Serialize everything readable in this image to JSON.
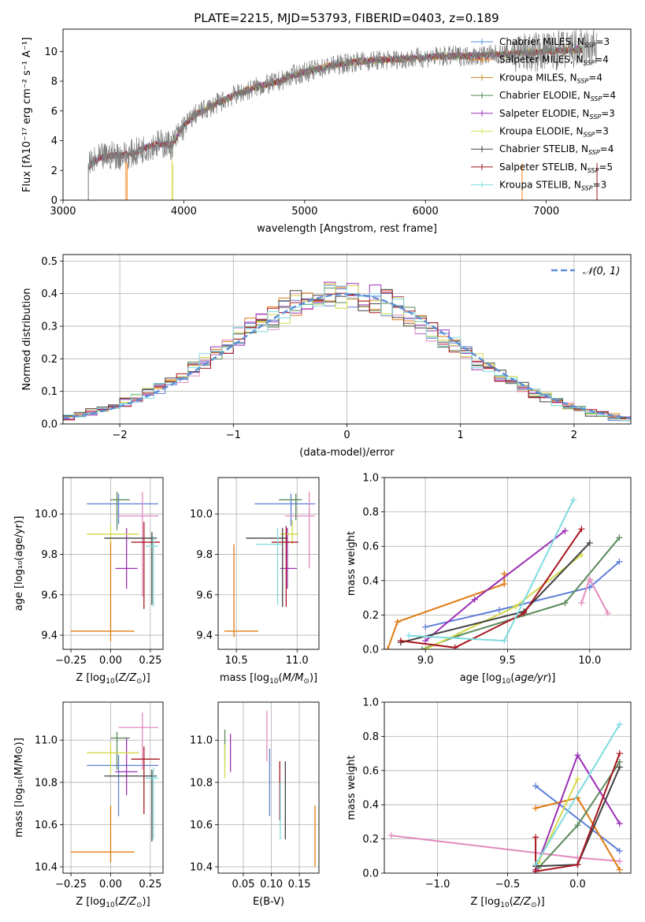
{
  "figure_title": "PLATE=2215, MJD=53793, FIBERID=0403, z=0.189",
  "colors": {
    "series": [
      "#7f7f7f",
      "#ff7f0e",
      "#e07a10",
      "#2ca02c",
      "#5a8a5a",
      "#9b30b5",
      "#d4d94a",
      "#404040",
      "#a8161e",
      "#7fdbe0",
      "#e38ac0",
      "#5f7fd9"
    ]
  },
  "chart_data": [
    {
      "id": "spectrum",
      "type": "line",
      "title": "PLATE=2215, MJD=53793, FIBERID=0403, z=0.189",
      "xlabel": "wavelength [Angstrom, rest frame]",
      "ylabel": "Flux [f_λ 10^-17 erg cm^-2 s^-1 A^-1]",
      "xlim": [
        3000,
        7700
      ],
      "ylim": [
        0,
        11.5
      ],
      "xticks": [
        "3000",
        "4000",
        "5000",
        "6000",
        "7000"
      ],
      "yticks": [
        "0",
        "2",
        "4",
        "6",
        "8",
        "10"
      ],
      "data_envelope": {
        "x": [
          3200,
          3300,
          3400,
          3500,
          3600,
          3700,
          3800,
          3900,
          4000,
          4100,
          4200,
          4300,
          4400,
          4500,
          4600,
          4700,
          4800,
          4900,
          5000,
          5200,
          5400,
          5600,
          5800,
          6000,
          6200,
          6400,
          6600,
          6800,
          7000,
          7200,
          7400
        ],
        "y": [
          2.2,
          2.8,
          3.0,
          3.0,
          3.2,
          3.6,
          3.8,
          3.7,
          5.0,
          5.8,
          6.2,
          6.6,
          7.0,
          7.3,
          7.6,
          7.8,
          8.0,
          8.4,
          8.6,
          9.0,
          9.3,
          9.4,
          9.5,
          9.6,
          9.7,
          9.7,
          9.8,
          9.9,
          10.0,
          10.1,
          10.2
        ]
      },
      "legend_position": "upper right",
      "legend": [
        {
          "label": "Chabrier MILES, N",
          "sub": "SSP",
          "suffix": "=3",
          "color": "#4a90e2"
        },
        {
          "label": "Salpeter MILES, N",
          "sub": "SSP",
          "suffix": "=4",
          "color": "#ff7f0e"
        },
        {
          "label": "Kroupa MILES, N",
          "sub": "SSP",
          "suffix": "=4",
          "color": "#c7891a"
        },
        {
          "label": "Chabrier ELODIE, N",
          "sub": "SSP",
          "suffix": "=4",
          "color": "#4f8a4f"
        },
        {
          "label": "Salpeter ELODIE, N",
          "sub": "SSP",
          "suffix": "=3",
          "color": "#9b30b5"
        },
        {
          "label": "Kroupa ELODIE, N",
          "sub": "SSP",
          "suffix": "=3",
          "color": "#d4e05a"
        },
        {
          "label": "Chabrier STELIB, N",
          "sub": "SSP",
          "suffix": "=4",
          "color": "#404040"
        },
        {
          "label": "Salpeter STELIB, N",
          "sub": "SSP",
          "suffix": "=5",
          "color": "#a8161e"
        },
        {
          "label": "Kroupa STELIB, N",
          "sub": "SSP",
          "suffix": "=3",
          "color": "#7fdbe0"
        }
      ]
    },
    {
      "id": "residuals",
      "type": "histogram",
      "xlabel": "(data-model)/error",
      "ylabel": "Normed distribution",
      "xlim": [
        -2.5,
        2.5
      ],
      "ylim": [
        0,
        0.52
      ],
      "xticks": [
        "−2",
        "−1",
        "0",
        "1",
        "2"
      ],
      "yticks": [
        "0.0",
        "0.1",
        "0.2",
        "0.3",
        "0.4",
        "0.5"
      ],
      "reference_curve": "𝒩(0, 1)",
      "bin_width": 0.1
    },
    {
      "id": "age_vs_Z",
      "type": "scatter",
      "xlabel": "Z [log10(Z/Z⊙)]",
      "ylabel": "age [log10(age/yr)]",
      "xlim": [
        -0.3,
        0.33
      ],
      "ylim": [
        9.33,
        10.18
      ],
      "xticks": [
        "−0.25",
        "0.00",
        "0.25"
      ],
      "xtick_values": [
        -0.25,
        0,
        0.25
      ],
      "yticks": [
        "9.4",
        "9.6",
        "9.8",
        "10.0"
      ],
      "ytick_values": [
        9.4,
        9.6,
        9.8,
        10.0
      ],
      "points": [
        {
          "x": 0.0,
          "y": 9.42,
          "xerr": [
            0.25,
            0.15
          ],
          "yerr": [
            0.05,
            0.45
          ],
          "color": "#e07a10"
        },
        {
          "x": 0.05,
          "y": 10.05,
          "xerr": [
            0.2,
            0.25
          ],
          "yerr": [
            0.1,
            0.05
          ],
          "color": "#5f7fd9"
        },
        {
          "x": 0.2,
          "y": 9.99,
          "xerr": [
            0.15,
            0.1
          ],
          "yerr": [
            0.4,
            0.12
          ],
          "color": "#e38ac0"
        },
        {
          "x": 0.04,
          "y": 10.07,
          "xerr": [
            0.04,
            0.08
          ],
          "yerr": [
            0.15,
            0.04
          ],
          "color": "#5a8a5a"
        },
        {
          "x": 0.1,
          "y": 9.73,
          "xerr": [
            0.07,
            0.07
          ],
          "yerr": [
            0.1,
            0.2
          ],
          "color": "#9b30b5"
        },
        {
          "x": 0.0,
          "y": 9.9,
          "xerr": [
            0.15,
            0.18
          ],
          "yerr": [
            0.04,
            0.05
          ],
          "color": "#d4d94a"
        },
        {
          "x": 0.26,
          "y": 9.88,
          "xerr": [
            0.3,
            0.03
          ],
          "yerr": [
            0.33,
            0.03
          ],
          "color": "#404040"
        },
        {
          "x": 0.21,
          "y": 9.86,
          "xerr": [
            0.08,
            0.1
          ],
          "yerr": [
            0.33,
            0.1
          ],
          "color": "#a8161e"
        },
        {
          "x": 0.27,
          "y": 9.84,
          "xerr": [
            0.05,
            0.03
          ],
          "yerr": [
            0.3,
            0.05
          ],
          "color": "#7fdbe0"
        }
      ]
    },
    {
      "id": "age_vs_mass",
      "type": "scatter",
      "xlabel": "mass [log10(M/M⊙)]",
      "ylabel": "",
      "xlim": [
        10.35,
        11.18
      ],
      "ylim": [
        9.33,
        10.18
      ],
      "xticks": [
        "10.5",
        "11.0"
      ],
      "xtick_values": [
        10.5,
        11.0
      ],
      "yticks": [
        "9.4",
        "9.6",
        "9.8",
        "10.0"
      ],
      "ytick_values": [
        9.4,
        9.6,
        9.8,
        10.0
      ],
      "points": [
        {
          "x": 10.48,
          "y": 9.42,
          "xerr": [
            0.08,
            0.2
          ],
          "yerr": [
            0.03,
            0.43
          ],
          "color": "#e07a10"
        },
        {
          "x": 10.95,
          "y": 10.05,
          "xerr": [
            0.3,
            0.2
          ],
          "yerr": [
            0.11,
            0.05
          ],
          "color": "#5f7fd9"
        },
        {
          "x": 11.1,
          "y": 9.99,
          "xerr": [
            0.2,
            0.05
          ],
          "yerr": [
            0.26,
            0.12
          ],
          "color": "#e38ac0"
        },
        {
          "x": 10.99,
          "y": 10.07,
          "xerr": [
            0.14,
            0.05
          ],
          "yerr": [
            0.1,
            0.03
          ],
          "color": "#5a8a5a"
        },
        {
          "x": 10.92,
          "y": 9.73,
          "xerr": [
            0.06,
            0.08
          ],
          "yerr": [
            0.1,
            0.2
          ],
          "color": "#9b30b5"
        },
        {
          "x": 10.96,
          "y": 9.9,
          "xerr": [
            0.1,
            0.05
          ],
          "yerr": [
            0.05,
            0.07
          ],
          "color": "#d4d94a"
        },
        {
          "x": 10.88,
          "y": 9.88,
          "xerr": [
            0.3,
            0.04
          ],
          "yerr": [
            0.34,
            0.05
          ],
          "color": "#404040"
        },
        {
          "x": 10.91,
          "y": 9.86,
          "xerr": [
            0.12,
            0.1
          ],
          "yerr": [
            0.32,
            0.08
          ],
          "color": "#a8161e"
        },
        {
          "x": 10.84,
          "y": 9.85,
          "xerr": [
            0.18,
            0.03
          ],
          "yerr": [
            0.3,
            0.08
          ],
          "color": "#7fdbe0"
        }
      ]
    },
    {
      "id": "weight_vs_age",
      "type": "line",
      "xlabel": "age [log10(age/yr)]",
      "ylabel": "mass weight",
      "xlim": [
        8.75,
        10.25
      ],
      "ylim": [
        0.0,
        1.0
      ],
      "xticks": [
        "9.0",
        "9.5",
        "10.0"
      ],
      "xtick_values": [
        9.0,
        9.5,
        10.0
      ],
      "yticks": [
        "0.0",
        "0.2",
        "0.4",
        "0.6",
        "0.8",
        "1.0"
      ],
      "ytick_values": [
        0,
        0.2,
        0.4,
        0.6,
        0.8,
        1.0
      ],
      "series": [
        {
          "color": "#e07a10",
          "x": [
            8.77,
            8.83,
            9.48,
            9.48
          ],
          "y": [
            0.0,
            0.16,
            0.38,
            0.44
          ]
        },
        {
          "color": "#5f7fd9",
          "x": [
            9.0,
            9.45,
            10.0,
            10.18
          ],
          "y": [
            0.13,
            0.23,
            0.36,
            0.51
          ]
        },
        {
          "color": "#e38ac0",
          "x": [
            9.95,
            10.0,
            10.11
          ],
          "y": [
            0.27,
            0.41,
            0.21
          ]
        },
        {
          "color": "#5a8a5a",
          "x": [
            8.98,
            9.2,
            9.85,
            10.18
          ],
          "y": [
            0.0,
            0.08,
            0.27,
            0.65
          ]
        },
        {
          "color": "#9b30b5",
          "x": [
            9.0,
            9.3,
            9.85
          ],
          "y": [
            0.05,
            0.29,
            0.69
          ]
        },
        {
          "color": "#d4d94a",
          "x": [
            9.0,
            9.55,
            9.95
          ],
          "y": [
            0.0,
            0.25,
            0.55
          ]
        },
        {
          "color": "#404040",
          "x": [
            8.85,
            9.6,
            10.0
          ],
          "y": [
            0.04,
            0.22,
            0.62
          ]
        },
        {
          "color": "#a8161e",
          "x": [
            8.85,
            9.18,
            9.6,
            9.95
          ],
          "y": [
            0.05,
            0.01,
            0.21,
            0.7
          ]
        },
        {
          "color": "#7fdbe0",
          "x": [
            8.9,
            9.48,
            9.9
          ],
          "y": [
            0.08,
            0.05,
            0.87
          ]
        }
      ]
    },
    {
      "id": "mass_vs_Z",
      "type": "scatter",
      "xlabel": "Z [log10(Z/Z⊙)]",
      "ylabel": "mass [log10(M/M⊙)]",
      "xlim": [
        -0.3,
        0.33
      ],
      "ylim": [
        10.37,
        11.18
      ],
      "xticks": [
        "−0.25",
        "0.00",
        "0.25"
      ],
      "xtick_values": [
        -0.25,
        0,
        0.25
      ],
      "yticks": [
        "10.4",
        "10.6",
        "10.8",
        "11.0"
      ],
      "ytick_values": [
        10.4,
        10.6,
        10.8,
        11.0
      ],
      "points": [
        {
          "x": 0.0,
          "y": 10.47,
          "xerr": [
            0.25,
            0.15
          ],
          "yerr": [
            0.05,
            0.22
          ],
          "color": "#e07a10"
        },
        {
          "x": 0.05,
          "y": 10.88,
          "xerr": [
            0.2,
            0.25
          ],
          "yerr": [
            0.24,
            0.05
          ],
          "color": "#5f7fd9"
        },
        {
          "x": 0.2,
          "y": 11.06,
          "xerr": [
            0.15,
            0.1
          ],
          "yerr": [
            0.2,
            0.07
          ],
          "color": "#e38ac0"
        },
        {
          "x": 0.04,
          "y": 11.01,
          "xerr": [
            0.04,
            0.08
          ],
          "yerr": [
            0.15,
            0.03
          ],
          "color": "#5a8a5a"
        },
        {
          "x": 0.1,
          "y": 10.85,
          "xerr": [
            0.07,
            0.07
          ],
          "yerr": [
            0.11,
            0.16
          ],
          "color": "#9b30b5"
        },
        {
          "x": 0.0,
          "y": 10.94,
          "xerr": [
            0.15,
            0.18
          ],
          "yerr": [
            0.1,
            0.05
          ],
          "color": "#d4d94a"
        },
        {
          "x": 0.26,
          "y": 10.83,
          "xerr": [
            0.3,
            0.03
          ],
          "yerr": [
            0.31,
            0.03
          ],
          "color": "#404040"
        },
        {
          "x": 0.21,
          "y": 10.91,
          "xerr": [
            0.08,
            0.1
          ],
          "yerr": [
            0.26,
            0.06
          ],
          "color": "#a8161e"
        },
        {
          "x": 0.27,
          "y": 10.82,
          "xerr": [
            0.05,
            0.03
          ],
          "yerr": [
            0.29,
            0.05
          ],
          "color": "#7fdbe0"
        }
      ]
    },
    {
      "id": "mass_vs_ebv",
      "type": "scatter",
      "xlabel": "E(B-V)",
      "ylabel": "",
      "xlim": [
        0.005,
        0.185
      ],
      "ylim": [
        10.37,
        11.18
      ],
      "xticks": [
        "0.05",
        "0.10",
        "0.15"
      ],
      "xtick_values": [
        0.05,
        0.1,
        0.15
      ],
      "yticks": [
        "10.4",
        "10.6",
        "10.8",
        "11.0"
      ],
      "ytick_values": [
        10.4,
        10.6,
        10.8,
        11.0
      ],
      "points": [
        {
          "x": 0.178,
          "y": 10.5,
          "xerr": [
            0,
            0
          ],
          "yerr": [
            0.1,
            0.19
          ],
          "color": "#e07a10"
        },
        {
          "x": 0.097,
          "y": 10.8,
          "xerr": [
            0,
            0
          ],
          "yerr": [
            0.16,
            0.16
          ],
          "color": "#5f7fd9"
        },
        {
          "x": 0.092,
          "y": 11.06,
          "xerr": [
            0,
            0
          ],
          "yerr": [
            0.16,
            0.08
          ],
          "color": "#e38ac0"
        },
        {
          "x": 0.017,
          "y": 10.95,
          "xerr": [
            0,
            0
          ],
          "yerr": [
            0.05,
            0.1
          ],
          "color": "#5a8a5a"
        },
        {
          "x": 0.027,
          "y": 10.97,
          "xerr": [
            0,
            0
          ],
          "yerr": [
            0.12,
            0.06
          ],
          "color": "#9b30b5"
        },
        {
          "x": 0.017,
          "y": 10.92,
          "xerr": [
            0,
            0
          ],
          "yerr": [
            0.1,
            0.06
          ],
          "color": "#d4d94a"
        },
        {
          "x": 0.125,
          "y": 10.7,
          "xerr": [
            0,
            0
          ],
          "yerr": [
            0.17,
            0.2
          ],
          "color": "#404040"
        },
        {
          "x": 0.115,
          "y": 10.78,
          "xerr": [
            0,
            0
          ],
          "yerr": [
            0.16,
            0.12
          ],
          "color": "#a8161e"
        },
        {
          "x": 0.116,
          "y": 10.72,
          "xerr": [
            0,
            0
          ],
          "yerr": [
            0.19,
            0.08
          ],
          "color": "#7fdbe0"
        }
      ]
    },
    {
      "id": "weight_vs_Z",
      "type": "line",
      "xlabel": "Z [log10(Z/Z⊙)]",
      "ylabel": "mass weight",
      "xlim": [
        -1.38,
        0.38
      ],
      "ylim": [
        0.0,
        1.0
      ],
      "xticks": [
        "−1.0",
        "−0.5",
        "0.0"
      ],
      "xtick_values": [
        -1.0,
        -0.5,
        0.0
      ],
      "yticks": [
        "0.0",
        "0.2",
        "0.4",
        "0.6",
        "0.8",
        "1.0"
      ],
      "ytick_values": [
        0,
        0.2,
        0.4,
        0.6,
        0.8,
        1.0
      ],
      "series": [
        {
          "color": "#e38ac0",
          "x": [
            -1.33,
            0.0,
            0.3
          ],
          "y": [
            0.22,
            0.09,
            0.07
          ]
        },
        {
          "color": "#5f7fd9",
          "x": [
            -0.3,
            0.3
          ],
          "y": [
            0.51,
            0.13
          ]
        },
        {
          "color": "#e07a10",
          "x": [
            -0.3,
            0.0,
            0.3
          ],
          "y": [
            0.38,
            0.44,
            0.02
          ]
        },
        {
          "color": "#5a8a5a",
          "x": [
            -0.28,
            0.0,
            0.3
          ],
          "y": [
            0.03,
            0.28,
            0.65
          ]
        },
        {
          "color": "#9b30b5",
          "x": [
            -0.3,
            0.0,
            0.3
          ],
          "y": [
            0.02,
            0.69,
            0.29
          ]
        },
        {
          "color": "#d4d94a",
          "x": [
            -0.28,
            0.0
          ],
          "y": [
            0.06,
            0.55
          ]
        },
        {
          "color": "#404040",
          "x": [
            -0.3,
            0.0,
            0.3
          ],
          "y": [
            0.04,
            0.05,
            0.62
          ]
        },
        {
          "color": "#a8161e",
          "x": [
            -0.3,
            -0.3,
            0.0,
            0.3
          ],
          "y": [
            0.21,
            0.01,
            0.05,
            0.7
          ]
        },
        {
          "color": "#7fdbe0",
          "x": [
            -0.3,
            0.3
          ],
          "y": [
            0.05,
            0.87
          ]
        }
      ]
    }
  ]
}
